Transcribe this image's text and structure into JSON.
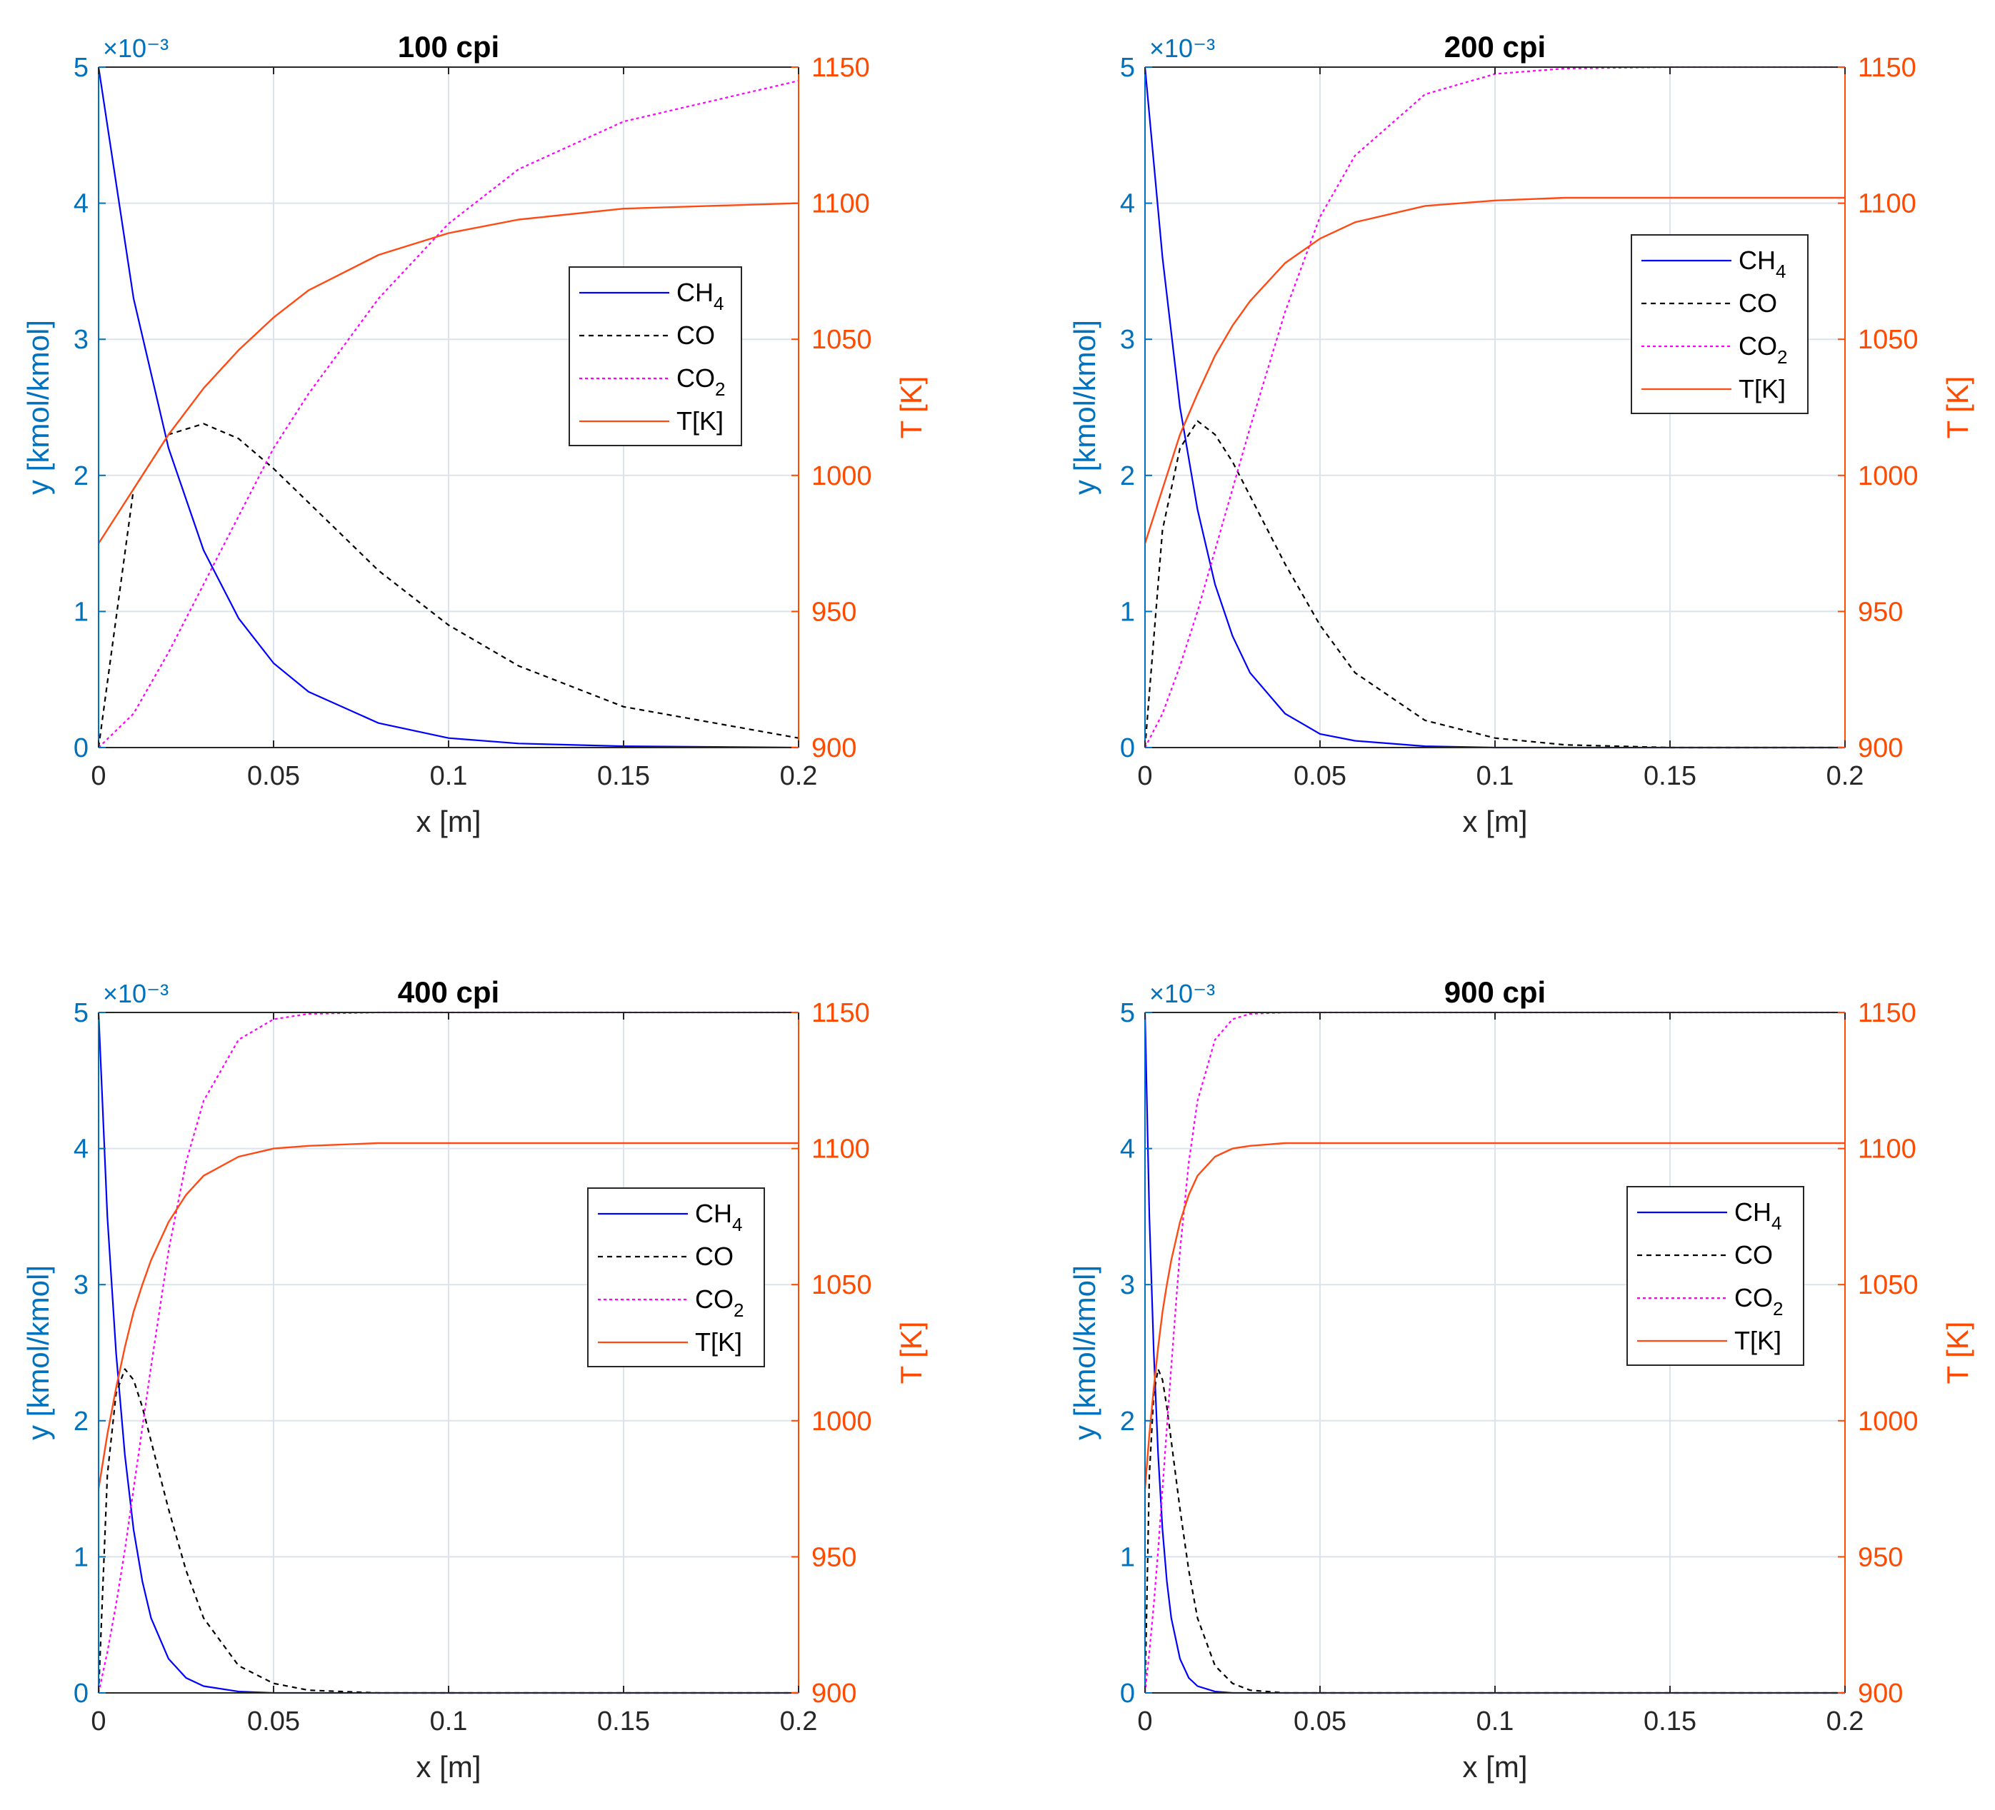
{
  "figure_title": "",
  "colors": {
    "left_axis": "#0072BD",
    "right_axis": "#FF4A00",
    "ch4": "#0000FF",
    "co": "#000000",
    "co2": "#FF00FF",
    "temp": "#FF4A14",
    "grid": "#DCE3EC",
    "box": "#262626"
  },
  "chart_data": [
    {
      "type": "line",
      "title": "100 cpi",
      "xlabel": "x [m]",
      "ylabel": "y [kmol/kmol]",
      "ylabel_right": "T [K]",
      "exponent": "×10⁻³",
      "xlim": [
        0,
        0.2
      ],
      "ylim": [
        0,
        5
      ],
      "ylim_right": [
        900,
        1150
      ],
      "xticks": [
        "0",
        "0.05",
        "0.1",
        "0.15",
        "0.2"
      ],
      "yticks": [
        "0",
        "1",
        "2",
        "3",
        "4",
        "5"
      ],
      "yticks_right": [
        "900",
        "950",
        "1000",
        "1050",
        "1100",
        "1150"
      ],
      "legend_position": "center-right",
      "legend": [
        {
          "main": "CH",
          "sub": "4"
        },
        {
          "main": "CO",
          "sub": ""
        },
        {
          "main": "CO",
          "sub": "2"
        },
        {
          "main": "T[K]",
          "sub": ""
        }
      ],
      "x": [
        0,
        0.01,
        0.02,
        0.03,
        0.04,
        0.05,
        0.06,
        0.08,
        0.1,
        0.12,
        0.15,
        0.2
      ],
      "series": [
        {
          "name": "CH4",
          "axis": "left",
          "values": [
            5.0,
            3.3,
            2.2,
            1.45,
            0.95,
            0.62,
            0.41,
            0.18,
            0.07,
            0.03,
            0.01,
            0.0
          ]
        },
        {
          "name": "CO",
          "axis": "left",
          "values": [
            0.0,
            1.9,
            2.3,
            2.38,
            2.27,
            2.05,
            1.8,
            1.3,
            0.9,
            0.6,
            0.3,
            0.07
          ]
        },
        {
          "name": "CO2",
          "axis": "left",
          "values": [
            0.0,
            0.25,
            0.7,
            1.2,
            1.7,
            2.2,
            2.6,
            3.3,
            3.85,
            4.25,
            4.6,
            4.9
          ]
        },
        {
          "name": "T[K]",
          "axis": "right",
          "values": [
            975,
            995,
            1015,
            1032,
            1046,
            1058,
            1068,
            1081,
            1089,
            1094,
            1098,
            1100
          ]
        }
      ]
    },
    {
      "type": "line",
      "title": "200 cpi",
      "xlabel": "x [m]",
      "ylabel": "y [kmol/kmol]",
      "ylabel_right": "T [K]",
      "exponent": "×10⁻³",
      "xlim": [
        0,
        0.2
      ],
      "ylim": [
        0,
        5
      ],
      "ylim_right": [
        900,
        1150
      ],
      "xticks": [
        "0",
        "0.05",
        "0.1",
        "0.15",
        "0.2"
      ],
      "yticks": [
        "0",
        "1",
        "2",
        "3",
        "4",
        "5"
      ],
      "yticks_right": [
        "900",
        "950",
        "1000",
        "1050",
        "1100",
        "1150"
      ],
      "legend_position": "upper-right",
      "legend": [
        {
          "main": "CH",
          "sub": "4"
        },
        {
          "main": "CO",
          "sub": ""
        },
        {
          "main": "CO",
          "sub": "2"
        },
        {
          "main": "T[K]",
          "sub": ""
        }
      ],
      "x": [
        0,
        0.005,
        0.01,
        0.015,
        0.02,
        0.025,
        0.03,
        0.04,
        0.05,
        0.06,
        0.08,
        0.1,
        0.12,
        0.15,
        0.2
      ],
      "series": [
        {
          "name": "CH4",
          "axis": "left",
          "values": [
            5.0,
            3.6,
            2.5,
            1.75,
            1.2,
            0.82,
            0.55,
            0.25,
            0.1,
            0.05,
            0.01,
            0.0,
            0.0,
            0.0,
            0.0
          ]
        },
        {
          "name": "CO",
          "axis": "left",
          "values": [
            0.0,
            1.6,
            2.2,
            2.4,
            2.3,
            2.1,
            1.85,
            1.35,
            0.9,
            0.55,
            0.2,
            0.07,
            0.02,
            0.0,
            0.0
          ]
        },
        {
          "name": "CO2",
          "axis": "left",
          "values": [
            0.0,
            0.25,
            0.6,
            1.0,
            1.45,
            1.9,
            2.35,
            3.2,
            3.9,
            4.35,
            4.8,
            4.95,
            4.99,
            5.0,
            5.0
          ]
        },
        {
          "name": "T[K]",
          "axis": "right",
          "values": [
            975,
            995,
            1015,
            1030,
            1044,
            1055,
            1064,
            1078,
            1087,
            1093,
            1099,
            1101,
            1102,
            1102,
            1102
          ]
        }
      ]
    },
    {
      "type": "line",
      "title": "400 cpi",
      "xlabel": "x [m]",
      "ylabel": "y [kmol/kmol]",
      "ylabel_right": "T [K]",
      "exponent": "×10⁻³",
      "xlim": [
        0,
        0.2
      ],
      "ylim": [
        0,
        5
      ],
      "ylim_right": [
        900,
        1150
      ],
      "xticks": [
        "0",
        "0.05",
        "0.1",
        "0.15",
        "0.2"
      ],
      "yticks": [
        "0",
        "1",
        "2",
        "3",
        "4",
        "5"
      ],
      "yticks_right": [
        "900",
        "950",
        "1000",
        "1050",
        "1100",
        "1150"
      ],
      "legend_position": "center-right",
      "legend": [
        {
          "main": "CH",
          "sub": "4"
        },
        {
          "main": "CO",
          "sub": ""
        },
        {
          "main": "CO",
          "sub": "2"
        },
        {
          "main": "T[K]",
          "sub": ""
        }
      ],
      "x": [
        0,
        0.0025,
        0.005,
        0.0075,
        0.01,
        0.0125,
        0.015,
        0.02,
        0.025,
        0.03,
        0.04,
        0.05,
        0.06,
        0.08,
        0.1,
        0.2
      ],
      "series": [
        {
          "name": "CH4",
          "axis": "left",
          "values": [
            5.0,
            3.5,
            2.5,
            1.75,
            1.2,
            0.82,
            0.55,
            0.25,
            0.11,
            0.05,
            0.01,
            0.0,
            0.0,
            0.0,
            0.0,
            0.0
          ]
        },
        {
          "name": "CO",
          "axis": "left",
          "values": [
            0.0,
            1.6,
            2.2,
            2.38,
            2.3,
            2.1,
            1.85,
            1.35,
            0.9,
            0.55,
            0.2,
            0.07,
            0.02,
            0.0,
            0.0,
            0.0
          ]
        },
        {
          "name": "CO2",
          "axis": "left",
          "values": [
            0.0,
            0.3,
            0.65,
            1.05,
            1.5,
            1.95,
            2.4,
            3.25,
            3.9,
            4.35,
            4.8,
            4.95,
            4.99,
            5.0,
            5.0,
            5.0
          ]
        },
        {
          "name": "T[K]",
          "axis": "right",
          "values": [
            975,
            995,
            1012,
            1027,
            1040,
            1050,
            1059,
            1073,
            1083,
            1090,
            1097,
            1100,
            1101,
            1102,
            1102,
            1102
          ]
        }
      ]
    },
    {
      "type": "line",
      "title": "900 cpi",
      "xlabel": "x [m]",
      "ylabel": "y [kmol/kmol]",
      "ylabel_right": "T [K]",
      "exponent": "×10⁻³",
      "xlim": [
        0,
        0.2
      ],
      "ylim": [
        0,
        5
      ],
      "ylim_right": [
        900,
        1150
      ],
      "xticks": [
        "0",
        "0.05",
        "0.1",
        "0.15",
        "0.2"
      ],
      "yticks": [
        "0",
        "1",
        "2",
        "3",
        "4",
        "5"
      ],
      "yticks_right": [
        "900",
        "950",
        "1000",
        "1050",
        "1100",
        "1150"
      ],
      "legend_position": "center-right",
      "legend": [
        {
          "main": "CH",
          "sub": "4"
        },
        {
          "main": "CO",
          "sub": ""
        },
        {
          "main": "CO",
          "sub": "2"
        },
        {
          "main": "T[K]",
          "sub": ""
        }
      ],
      "x": [
        0,
        0.00125,
        0.0025,
        0.00375,
        0.005,
        0.00625,
        0.0075,
        0.01,
        0.0125,
        0.015,
        0.02,
        0.025,
        0.03,
        0.04,
        0.05,
        0.2
      ],
      "series": [
        {
          "name": "CH4",
          "axis": "left",
          "values": [
            5.0,
            3.5,
            2.5,
            1.75,
            1.2,
            0.82,
            0.55,
            0.25,
            0.11,
            0.05,
            0.01,
            0.0,
            0.0,
            0.0,
            0.0,
            0.0
          ]
        },
        {
          "name": "CO",
          "axis": "left",
          "values": [
            0.0,
            1.6,
            2.2,
            2.38,
            2.3,
            2.1,
            1.85,
            1.35,
            0.9,
            0.55,
            0.2,
            0.07,
            0.02,
            0.0,
            0.0,
            0.0
          ]
        },
        {
          "name": "CO2",
          "axis": "left",
          "values": [
            0.0,
            0.3,
            0.65,
            1.05,
            1.5,
            1.95,
            2.4,
            3.25,
            3.9,
            4.35,
            4.8,
            4.95,
            4.99,
            5.0,
            5.0,
            5.0
          ]
        },
        {
          "name": "T[K]",
          "axis": "right",
          "values": [
            975,
            995,
            1012,
            1027,
            1040,
            1050,
            1059,
            1073,
            1083,
            1090,
            1097,
            1100,
            1101,
            1102,
            1102,
            1102
          ]
        }
      ]
    }
  ]
}
